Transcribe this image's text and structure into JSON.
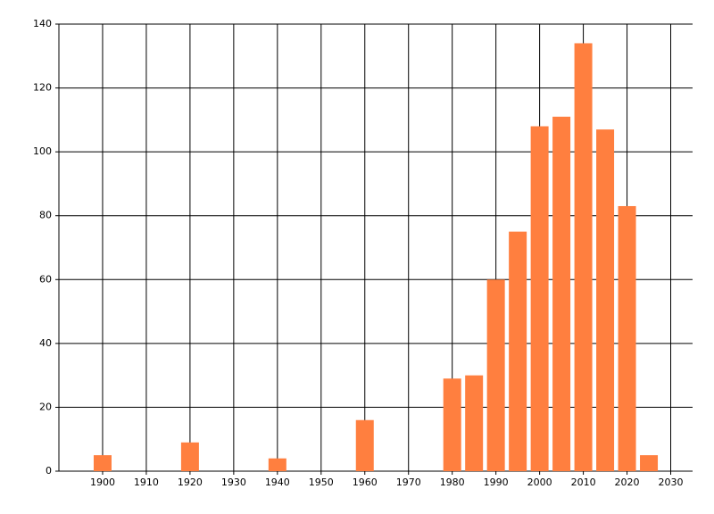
{
  "chart_data": {
    "type": "bar",
    "x": [
      1900,
      1920,
      1940,
      1960,
      1980,
      1985,
      1990,
      1995,
      2000,
      2005,
      2010,
      2015,
      2020,
      2025
    ],
    "values": [
      5,
      9,
      4,
      16,
      29,
      30,
      60,
      75,
      108,
      111,
      134,
      107,
      83,
      5
    ],
    "color": "#ff7f3f",
    "xlim": [
      1890,
      2035
    ],
    "xticks": [
      1900,
      1910,
      1920,
      1930,
      1940,
      1950,
      1960,
      1970,
      1980,
      1990,
      2000,
      2010,
      2020,
      2030
    ],
    "ylim": [
      0,
      140
    ],
    "yticks": [
      0,
      20,
      40,
      60,
      80,
      100,
      120,
      140
    ],
    "grid": true
  }
}
